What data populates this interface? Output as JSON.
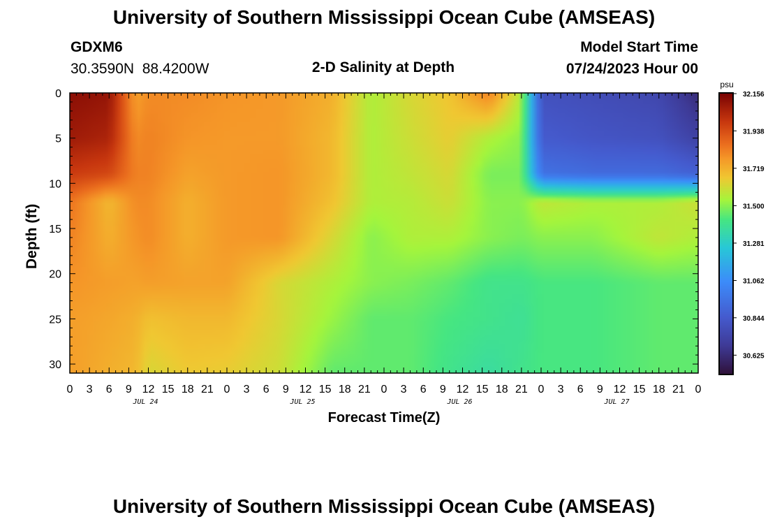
{
  "header": {
    "title": "University of Southern Mississippi Ocean Cube (AMSEAS)",
    "station_id": "GDXM6",
    "coordinates": "30.3590N  88.4200W",
    "subtitle": "2-D Salinity at Depth",
    "model_label": "Model Start Time",
    "model_start": "07/24/2023 Hour 00"
  },
  "footer": {
    "title": "University of Southern Mississippi Ocean Cube (AMSEAS)"
  },
  "chart_data": {
    "type": "heatmap",
    "title": "2-D Salinity at Depth",
    "xlabel": "Forecast Time(Z)",
    "ylabel": "Depth (ft)",
    "x_range_hours": [
      0,
      96
    ],
    "y_range_ft": [
      0,
      31
    ],
    "x_tick_labels": [
      "0",
      "3",
      "6",
      "9",
      "12",
      "15",
      "18",
      "21",
      "0",
      "3",
      "6",
      "9",
      "12",
      "15",
      "18",
      "21",
      "0",
      "3",
      "6",
      "9",
      "12",
      "15",
      "18",
      "21",
      "0",
      "3",
      "6",
      "9",
      "12",
      "15",
      "18",
      "21",
      "0"
    ],
    "y_ticks": [
      0,
      5,
      10,
      15,
      20,
      25,
      30
    ],
    "date_labels": [
      "JUL 24",
      "JUL 25",
      "JUL 26",
      "JUL 27"
    ],
    "colorbar": {
      "unit": "psu",
      "min": 30.516,
      "max": 32.156,
      "tick_labels": [
        "32.156",
        "31.938",
        "31.719",
        "31.500",
        "31.281",
        "31.062",
        "30.844",
        "30.625"
      ]
    },
    "columns_hours": [
      0,
      6,
      10,
      12,
      18,
      24,
      32,
      40,
      46,
      52,
      58,
      64,
      69,
      72,
      80,
      90,
      96
    ],
    "depth_rows_ft": [
      0,
      5,
      9,
      12,
      16,
      21,
      25,
      31
    ],
    "salinity_psu": [
      [
        32.12,
        32.1,
        31.75,
        31.8,
        31.8,
        31.78,
        31.77,
        31.72,
        31.55,
        31.62,
        31.67,
        31.82,
        31.55,
        30.8,
        30.78,
        30.75,
        30.62
      ],
      [
        32.08,
        32.05,
        31.8,
        31.82,
        31.78,
        31.77,
        31.77,
        31.7,
        31.55,
        31.6,
        31.65,
        31.55,
        31.5,
        30.85,
        30.82,
        30.8,
        30.72
      ],
      [
        31.98,
        31.95,
        31.82,
        31.82,
        31.75,
        31.77,
        31.78,
        31.7,
        31.55,
        31.58,
        31.62,
        31.48,
        31.48,
        30.95,
        30.92,
        30.92,
        30.88
      ],
      [
        31.85,
        31.7,
        31.8,
        31.8,
        31.72,
        31.77,
        31.78,
        31.68,
        31.55,
        31.56,
        31.6,
        31.5,
        31.5,
        31.58,
        31.55,
        31.55,
        31.6
      ],
      [
        31.82,
        31.72,
        31.78,
        31.8,
        31.72,
        31.77,
        31.78,
        31.62,
        31.5,
        31.55,
        31.55,
        31.5,
        31.48,
        31.5,
        31.5,
        31.58,
        31.55
      ],
      [
        31.78,
        31.76,
        31.75,
        31.76,
        31.75,
        31.75,
        31.62,
        31.55,
        31.5,
        31.48,
        31.45,
        31.4,
        31.4,
        31.42,
        31.42,
        31.45,
        31.45
      ],
      [
        31.76,
        31.74,
        31.72,
        31.68,
        31.7,
        31.7,
        31.62,
        31.52,
        31.45,
        31.45,
        31.42,
        31.4,
        31.38,
        31.42,
        31.42,
        31.45,
        31.45
      ],
      [
        31.76,
        31.72,
        31.7,
        31.62,
        31.66,
        31.65,
        31.6,
        31.45,
        31.45,
        31.45,
        31.4,
        31.36,
        31.4,
        31.42,
        31.42,
        31.45,
        31.45
      ]
    ]
  }
}
